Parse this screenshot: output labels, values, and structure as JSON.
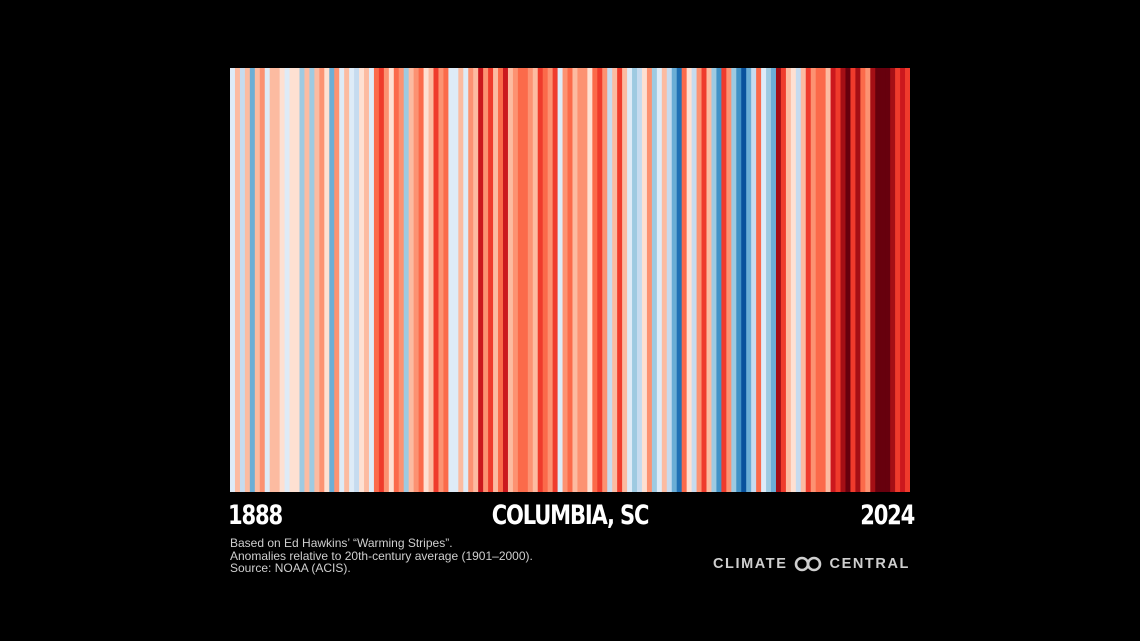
{
  "chart_data": {
    "type": "heatmap",
    "title": "COLUMBIA, SC",
    "x_start_label": "1888",
    "x_end_label": "2024",
    "color_scale": [
      "#08306b",
      "#08519c",
      "#2171b5",
      "#4292c6",
      "#6baed6",
      "#9ecae1",
      "#c6dbef",
      "#deebf7",
      "#fee0d2",
      "#fcbba1",
      "#fc9272",
      "#fb6a4a",
      "#ef3b2c",
      "#cb181d",
      "#a50f15",
      "#67000d"
    ],
    "stripe_levels": [
      7,
      9,
      6,
      9,
      4,
      9,
      10,
      7,
      9,
      9,
      8,
      7,
      8,
      8,
      5,
      9,
      5,
      9,
      10,
      8,
      4,
      10,
      7,
      9,
      7,
      6,
      8,
      9,
      7,
      11,
      12,
      10,
      8,
      11,
      10,
      5,
      9,
      10,
      11,
      8,
      9,
      12,
      10,
      11,
      7,
      7,
      9,
      7,
      10,
      9,
      13,
      10,
      12,
      9,
      11,
      13,
      9,
      10,
      11,
      11,
      10,
      9,
      12,
      11,
      10,
      12,
      7,
      10,
      11,
      9,
      10,
      10,
      8,
      11,
      12,
      10,
      6,
      9,
      12,
      9,
      7,
      5,
      6,
      8,
      10,
      5,
      7,
      9,
      6,
      4,
      2,
      11,
      8,
      6,
      10,
      12,
      9,
      5,
      3,
      12,
      10,
      5,
      3,
      1,
      4,
      6,
      11,
      7,
      5,
      4,
      14,
      12,
      9,
      8,
      6,
      9,
      12,
      10,
      11,
      11,
      9,
      13,
      12,
      14,
      15,
      12,
      14,
      11,
      10,
      14,
      15,
      15,
      15,
      14,
      12,
      13,
      12
    ]
  },
  "footer": {
    "notes": [
      "Based on Ed Hawkins’ “Warming Stripes”.",
      "Anomalies relative to 20th-century average (1901–2000).",
      "Source: NOAA (ACIS)."
    ],
    "brand_left": "CLIMATE",
    "brand_right": "CENTRAL",
    "brand_logo_icon": "linked-rings-logo-icon"
  }
}
